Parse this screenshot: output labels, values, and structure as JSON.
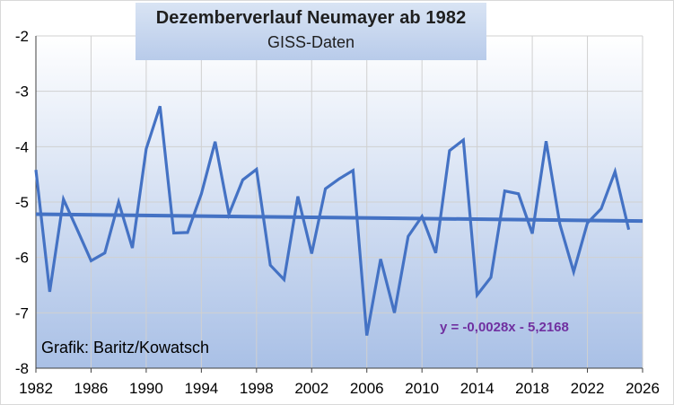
{
  "chart_data": {
    "type": "line",
    "title": "Dezemberverlauf Neumayer ab 1982",
    "subtitle": "GISS-Daten",
    "credit": "Grafik: Baritz/Kowatsch",
    "xlabel": "",
    "ylabel": "",
    "xlim": [
      1982,
      2026
    ],
    "ylim": [
      -8,
      -2
    ],
    "x_ticks": [
      "1982",
      "1986",
      "1990",
      "1994",
      "1998",
      "2002",
      "2006",
      "2010",
      "2014",
      "2018",
      "2022",
      "2026"
    ],
    "y_ticks": [
      "-2",
      "-3",
      "-4",
      "-5",
      "-6",
      "-7",
      "-8"
    ],
    "grid": true,
    "legend": "none",
    "series": [
      {
        "x": [
          1982,
          1983,
          1984,
          1985,
          1986,
          1987,
          1988,
          1989,
          1990,
          1991,
          1992,
          1993,
          1994,
          1995,
          1996,
          1997,
          1998,
          1999,
          2000,
          2001,
          2002,
          2003,
          2004,
          2005,
          2006,
          2007,
          2008,
          2009,
          2010,
          2011,
          2012,
          2013,
          2014,
          2015,
          2016,
          2017,
          2018,
          2019,
          2020,
          2021,
          2022,
          2023,
          2024,
          2025
        ],
        "values": [
          -4.42,
          -6.62,
          -4.95,
          -5.5,
          -6.06,
          -5.92,
          -5.0,
          -5.83,
          -4.04,
          -3.27,
          -5.56,
          -5.55,
          -4.85,
          -3.91,
          -5.22,
          -4.6,
          -4.41,
          -6.14,
          -6.4,
          -4.9,
          -5.93,
          -4.76,
          -4.58,
          -4.43,
          -7.41,
          -6.03,
          -7.0,
          -5.62,
          -5.26,
          -5.92,
          -4.07,
          -3.88,
          -6.68,
          -6.36,
          -4.8,
          -4.85,
          -5.57,
          -3.9,
          -5.4,
          -6.26,
          -5.38,
          -5.12,
          -4.45,
          -5.5
        ],
        "color": "#4472c4"
      }
    ],
    "trendline": {
      "equation": "y = -0,0028x - 5,2168",
      "slope": -0.0028,
      "intercept": -5.2168,
      "color": "#4472c4"
    },
    "colors": {
      "plot_bg_top": "#ffffff",
      "plot_bg_bottom": "#a9c0e6",
      "equation": "#7030a0"
    }
  }
}
